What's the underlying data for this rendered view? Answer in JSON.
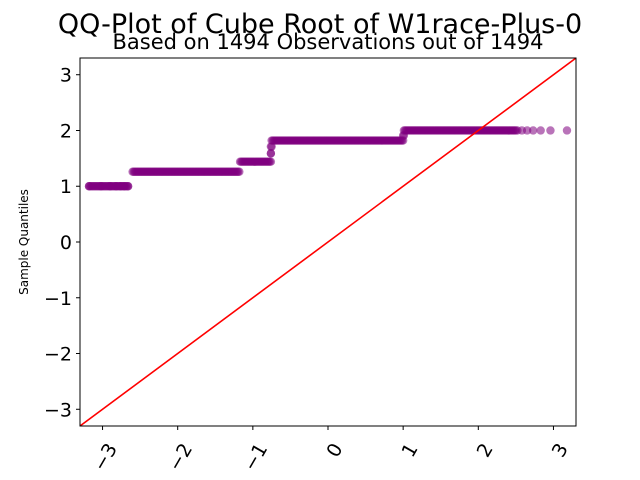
{
  "chart_data": {
    "type": "scatter",
    "title": "QQ-Plot of Cube Root of W1race-Plus-0",
    "subtitle": "Based on 1494 Observations out of 1494",
    "xlabel": "",
    "ylabel": "Sample Quantiles",
    "xlim": [
      -3.3,
      3.3
    ],
    "ylim": [
      -3.3,
      3.3
    ],
    "xticks": [
      "−3",
      "−2",
      "−1",
      "0",
      "1",
      "2",
      "3"
    ],
    "xtick_values": [
      -3,
      -2,
      -1,
      0,
      1,
      2,
      3
    ],
    "yticks": [
      "−3",
      "−2",
      "−1",
      "0",
      "1",
      "2",
      "3"
    ],
    "ytick_values": [
      -3,
      -2,
      -1,
      0,
      1,
      2,
      3
    ],
    "reference_line": {
      "from": [
        -3.3,
        -3.3
      ],
      "to": [
        3.3,
        3.3
      ]
    },
    "grid": false,
    "steps": [
      {
        "y": 1.0,
        "x_from": -3.18,
        "x_to": -2.66,
        "sparse_points": [
          -3.18,
          -3.02,
          -2.9,
          -2.82,
          -2.76,
          -2.71,
          -2.66
        ]
      },
      {
        "y": 1.26,
        "x_from": -2.6,
        "x_to": -1.18
      },
      {
        "y": 1.44,
        "x_from": -1.17,
        "x_to": -0.76
      },
      {
        "y": 1.59,
        "x_from": -0.76,
        "x_to": -0.76
      },
      {
        "y": 1.71,
        "x_from": -0.76,
        "x_to": -0.75
      },
      {
        "y": 1.82,
        "x_from": -0.75,
        "x_to": 1.0
      },
      {
        "y": 1.91,
        "x_from": 1.0,
        "x_to": 1.01
      },
      {
        "y": 2.0,
        "x_from": 1.01,
        "x_to": 2.5,
        "sparse_points": [
          2.52,
          2.58,
          2.65,
          2.73,
          2.83,
          2.96,
          3.18
        ]
      }
    ],
    "point_color": "#800080",
    "line_color": "#ff0000"
  }
}
